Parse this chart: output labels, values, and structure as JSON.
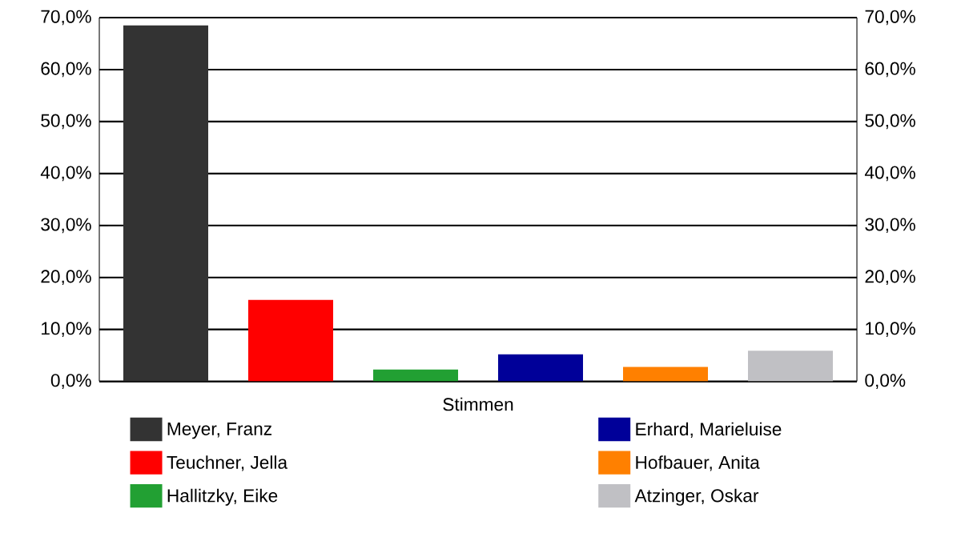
{
  "chart_data": {
    "type": "bar",
    "categories": [
      "Stimmen"
    ],
    "series": [
      {
        "name": "Meyer, Franz",
        "color": "#333333",
        "values": [
          68.5
        ]
      },
      {
        "name": "Teuchner, Jella",
        "color": "#ff0000",
        "values": [
          15.7
        ]
      },
      {
        "name": "Hallitzky, Eike",
        "color": "#22a033",
        "values": [
          2.3
        ]
      },
      {
        "name": "Erhard, Marieluise",
        "color": "#000099",
        "values": [
          5.2
        ]
      },
      {
        "name": "Hofbauer, Anita",
        "color": "#ff8000",
        "values": [
          2.8
        ]
      },
      {
        "name": "Atzinger, Oskar",
        "color": "#c0c0c4",
        "values": [
          5.9
        ]
      }
    ],
    "ylim": [
      0,
      70
    ],
    "yticks": [
      {
        "value": 0,
        "label": "0,0%"
      },
      {
        "value": 10,
        "label": "10,0%"
      },
      {
        "value": 20,
        "label": "20,0%"
      },
      {
        "value": 30,
        "label": "30,0%"
      },
      {
        "value": 40,
        "label": "40,0%"
      },
      {
        "value": 50,
        "label": "50,0%"
      },
      {
        "value": 60,
        "label": "60,0%"
      },
      {
        "value": 70,
        "label": "70,0%"
      }
    ],
    "grid": "y",
    "legend": "bottom"
  }
}
